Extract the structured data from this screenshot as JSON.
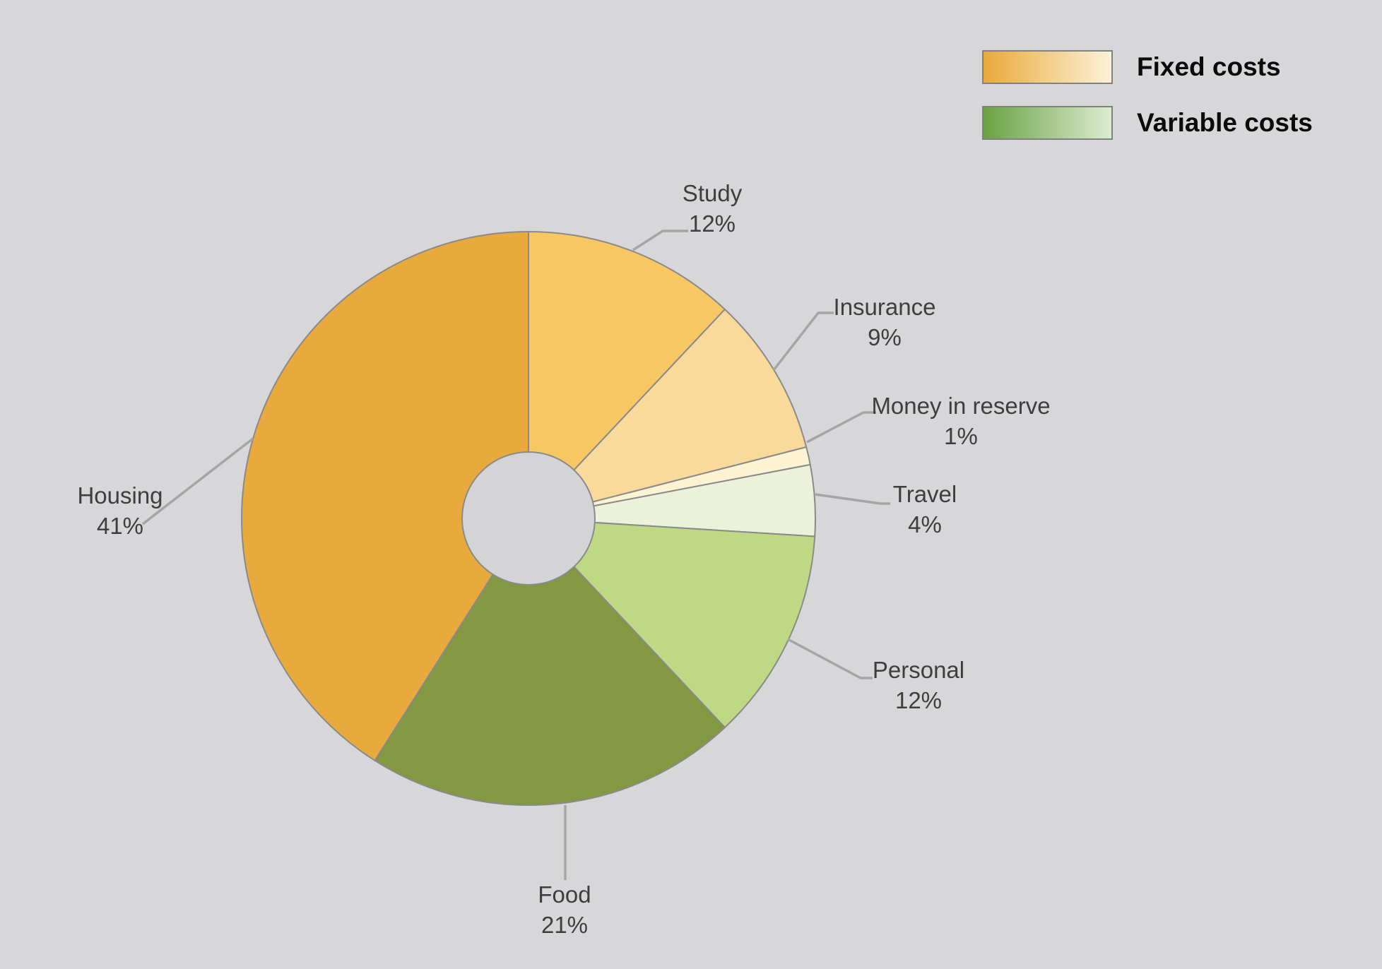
{
  "page": {
    "background_color": "#d7d7d9"
  },
  "legend": {
    "items": [
      {
        "id": "fixed",
        "label": "Fixed costs",
        "gradient_start": "#e9aa3b",
        "gradient_end": "#fcf2d8"
      },
      {
        "id": "variable",
        "label": "Variable costs",
        "gradient_start": "#6aa244",
        "gradient_end": "#dcecd1"
      }
    ]
  },
  "chart_data": {
    "type": "pie",
    "subtype": "donut",
    "unit": "%",
    "start_angle_deg": 0,
    "direction": "clockwise",
    "legend_position": "top-right",
    "stroke_color": "#8a8a8a",
    "leader_line_color": "#a5a5a5",
    "hole_color": "#d4d4d6",
    "slices": [
      {
        "name": "Study",
        "value": 12,
        "pct_label": "12%",
        "color": "#f6c763",
        "group": "Fixed costs"
      },
      {
        "name": "Insurance",
        "value": 9,
        "pct_label": "9%",
        "color": "#f9da9a",
        "group": "Fixed costs"
      },
      {
        "name": "Money in reserve",
        "value": 1,
        "pct_label": "1%",
        "color": "#fcf3d2",
        "group": "Fixed costs"
      },
      {
        "name": "Travel",
        "value": 4,
        "pct_label": "4%",
        "color": "#ecf2d9",
        "group": "Variable costs"
      },
      {
        "name": "Personal",
        "value": 12,
        "pct_label": "12%",
        "color": "#bfd883",
        "group": "Variable costs"
      },
      {
        "name": "Food",
        "value": 21,
        "pct_label": "21%",
        "color": "#839840",
        "group": "Variable costs"
      },
      {
        "name": "Housing",
        "value": 41,
        "pct_label": "41%",
        "color": "#e9aa3d",
        "group": "Fixed costs"
      }
    ]
  }
}
